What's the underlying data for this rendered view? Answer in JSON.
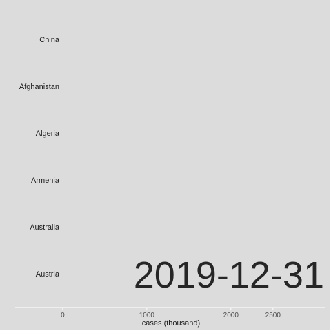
{
  "chart_data": {
    "type": "bar",
    "orientation": "horizontal",
    "categories": [
      "China",
      "Afghanistan",
      "Algeria",
      "Armenia",
      "Australia",
      "Austria"
    ],
    "values": [
      0,
      0,
      0,
      0,
      0,
      0
    ],
    "xlabel": "cases (thousand)",
    "ylabel": "",
    "x_ticks": [
      0,
      1000,
      2000,
      2500
    ],
    "xlim": [
      -565,
      3125
    ],
    "date_label": "2019-12-31",
    "grid": false,
    "colors": {
      "panel": "#dcdcdc",
      "axis_line": "#ffffff",
      "text": "#1a1a1a",
      "tick_text": "#4d4d4d",
      "date_text": "#262626"
    }
  }
}
